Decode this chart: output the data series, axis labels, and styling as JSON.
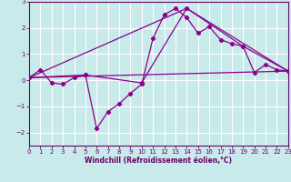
{
  "xlabel": "Windchill (Refroidissement éolien,°C)",
  "bg_color": "#c8eaea",
  "line_color": "#8b008b",
  "grid_color": "#ffffff",
  "axis_color": "#6b006b",
  "xlim": [
    0,
    23
  ],
  "ylim": [
    -2.5,
    3.0
  ],
  "yticks": [
    -2,
    -1,
    0,
    1,
    2,
    3
  ],
  "xticks": [
    0,
    1,
    2,
    3,
    4,
    5,
    6,
    7,
    8,
    9,
    10,
    11,
    12,
    13,
    14,
    15,
    16,
    17,
    18,
    19,
    20,
    21,
    22,
    23
  ],
  "series1_x": [
    0,
    1,
    2,
    3,
    4,
    5,
    6,
    7,
    8,
    9,
    10,
    11,
    12,
    13,
    14,
    15,
    16,
    17,
    18,
    19,
    20,
    21,
    22,
    23
  ],
  "series1_y": [
    0.1,
    0.4,
    -0.1,
    -0.15,
    0.1,
    0.2,
    -1.85,
    -1.2,
    -0.9,
    -0.5,
    -0.15,
    1.6,
    2.5,
    2.75,
    2.4,
    1.8,
    2.05,
    1.55,
    1.4,
    1.3,
    0.3,
    0.6,
    0.4,
    0.35
  ],
  "series2_x": [
    0,
    14,
    23
  ],
  "series2_y": [
    0.1,
    2.75,
    0.35
  ],
  "series3_x": [
    0,
    23
  ],
  "series3_y": [
    0.1,
    0.35
  ],
  "series4_x": [
    0,
    5,
    10,
    14,
    19,
    23
  ],
  "series4_y": [
    0.1,
    0.2,
    -0.1,
    2.75,
    1.3,
    0.35
  ]
}
